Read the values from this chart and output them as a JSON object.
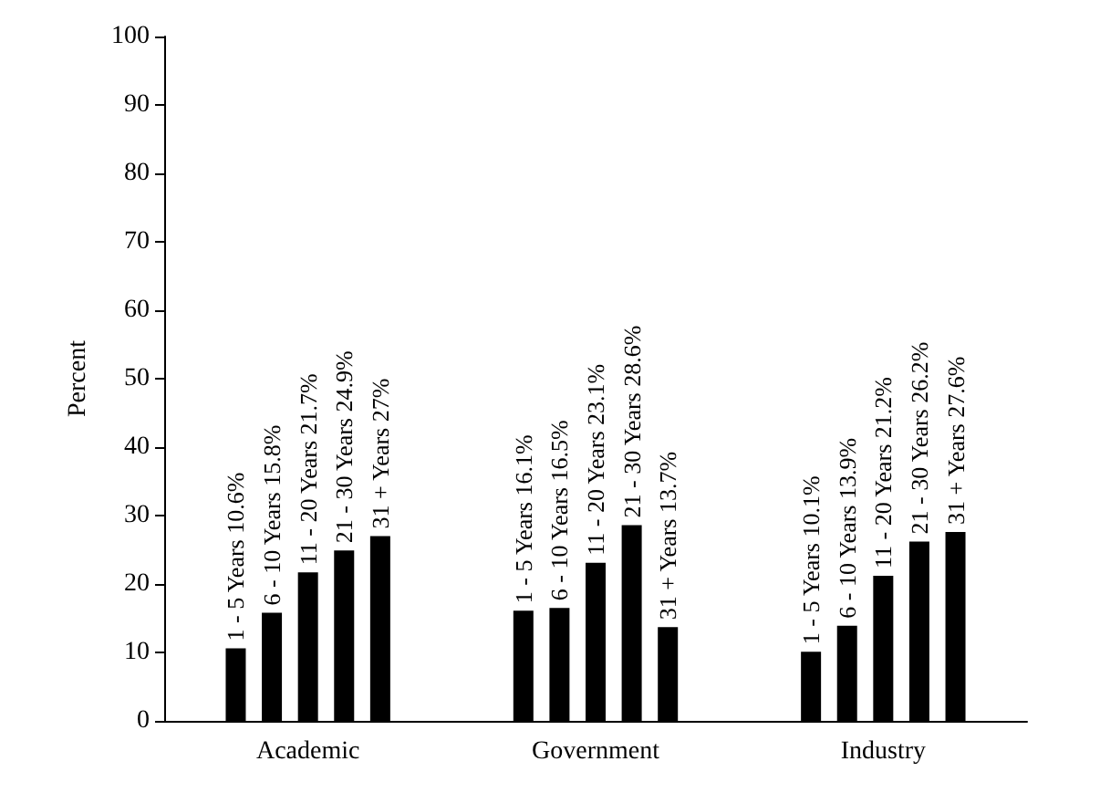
{
  "chart_data": {
    "type": "bar",
    "ylabel": "Percent",
    "categories": [
      "Academic",
      "Government",
      "Industry"
    ],
    "series": [
      {
        "color": "#000000",
        "values": [
          10.6,
          16.1,
          10.1
        ],
        "value_labels": [
          "1 - 5 Years 10.6%",
          "1 - 5 Years 16.1%",
          "1 - 5 Years 10.1%"
        ]
      },
      {
        "color": "#000000",
        "values": [
          15.8,
          16.5,
          13.9
        ],
        "value_labels": [
          "6 - 10 Years 15.8%",
          "6 - 10 Years 16.5%",
          "6 - 10 Years 13.9%"
        ]
      },
      {
        "color": "#000000",
        "values": [
          21.7,
          23.1,
          21.2
        ],
        "value_labels": [
          "11 - 20 Years 21.7%",
          "11 - 20 Years 23.1%",
          "11 - 20 Years 21.2%"
        ]
      },
      {
        "color": "#000000",
        "values": [
          24.9,
          28.6,
          26.2
        ],
        "value_labels": [
          "21 - 30 Years 24.9%",
          "21 - 30 Years 28.6%",
          "21 - 30 Years 26.2%"
        ]
      },
      {
        "color": "#000000",
        "values": [
          27,
          13.7,
          27.6
        ],
        "value_labels": [
          "31 + Years 27%",
          "31 + Years 13.7%",
          "31 + Years 27.6%"
        ]
      }
    ],
    "ylim": [
      0,
      100
    ],
    "yticks": [
      0,
      10,
      20,
      30,
      40,
      50,
      60,
      70,
      80,
      90,
      100
    ],
    "grid": false
  }
}
